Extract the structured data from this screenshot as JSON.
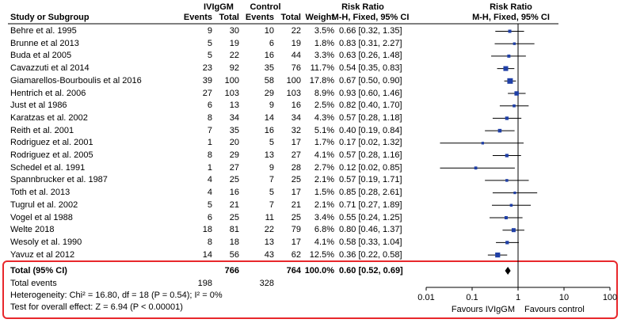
{
  "header": {
    "group1": "IVIgGM",
    "group2": "Control",
    "risk_ratio_a": "Risk Ratio",
    "risk_ratio_b": "Risk Ratio",
    "study_col": "Study or Subgroup",
    "events1": "Events",
    "total1": "Total",
    "events2": "Events",
    "total2": "Total",
    "weight": "Weight",
    "method_a": "M-H, Fixed, 95% CI",
    "method_b": "M-H, Fixed, 95% CI"
  },
  "chart_data": {
    "type": "forest",
    "scale": "log",
    "xlim": [
      0.01,
      100
    ],
    "ticks": [
      "0.01",
      "0.1",
      "1",
      "10",
      "100"
    ],
    "favours_left": "Favours IVIgGM",
    "favours_right": "Favours control",
    "studies": [
      {
        "name": "Behre et al. 1995",
        "e1": 9,
        "n1": 30,
        "e2": 10,
        "n2": 22,
        "weight": "3.5%",
        "rr": 0.66,
        "lo": 0.32,
        "hi": 1.35,
        "ci": "0.66 [0.32, 1.35]"
      },
      {
        "name": "Brunne et al 2013",
        "e1": 5,
        "n1": 19,
        "e2": 6,
        "n2": 19,
        "weight": "1.8%",
        "rr": 0.83,
        "lo": 0.31,
        "hi": 2.27,
        "ci": "0.83 [0.31, 2.27]"
      },
      {
        "name": "Buda et al 2005",
        "e1": 5,
        "n1": 22,
        "e2": 16,
        "n2": 44,
        "weight": "3.3%",
        "rr": 0.63,
        "lo": 0.26,
        "hi": 1.48,
        "ci": "0.63 [0.26, 1.48]"
      },
      {
        "name": "Cavazzuti et al 2014",
        "e1": 23,
        "n1": 92,
        "e2": 35,
        "n2": 76,
        "weight": "11.7%",
        "rr": 0.54,
        "lo": 0.35,
        "hi": 0.83,
        "ci": "0.54 [0.35, 0.83]"
      },
      {
        "name": "Giamarellos-Bourboulis et al 2016",
        "e1": 39,
        "n1": 100,
        "e2": 58,
        "n2": 100,
        "weight": "17.8%",
        "rr": 0.67,
        "lo": 0.5,
        "hi": 0.9,
        "ci": "0.67 [0.50, 0.90]"
      },
      {
        "name": "Hentrich et al. 2006",
        "e1": 27,
        "n1": 103,
        "e2": 29,
        "n2": 103,
        "weight": "8.9%",
        "rr": 0.93,
        "lo": 0.6,
        "hi": 1.46,
        "ci": "0.93 [0.60, 1.46]"
      },
      {
        "name": "Just et al 1986",
        "e1": 6,
        "n1": 13,
        "e2": 9,
        "n2": 16,
        "weight": "2.5%",
        "rr": 0.82,
        "lo": 0.4,
        "hi": 1.7,
        "ci": "0.82 [0.40, 1.70]"
      },
      {
        "name": "Karatzas et al. 2002",
        "e1": 8,
        "n1": 34,
        "e2": 14,
        "n2": 34,
        "weight": "4.3%",
        "rr": 0.57,
        "lo": 0.28,
        "hi": 1.18,
        "ci": "0.57 [0.28, 1.18]"
      },
      {
        "name": "Reith et al. 2001",
        "e1": 7,
        "n1": 35,
        "e2": 16,
        "n2": 32,
        "weight": "5.1%",
        "rr": 0.4,
        "lo": 0.19,
        "hi": 0.84,
        "ci": "0.40 [0.19, 0.84]"
      },
      {
        "name": "Rodriguez et al. 2001",
        "e1": 1,
        "n1": 20,
        "e2": 5,
        "n2": 17,
        "weight": "1.7%",
        "rr": 0.17,
        "lo": 0.02,
        "hi": 1.32,
        "ci": "0.17 [0.02, 1.32]"
      },
      {
        "name": "Rodriguez et al. 2005",
        "e1": 8,
        "n1": 29,
        "e2": 13,
        "n2": 27,
        "weight": "4.1%",
        "rr": 0.57,
        "lo": 0.28,
        "hi": 1.16,
        "ci": "0.57 [0.28, 1.16]"
      },
      {
        "name": "Schedel et al. 1991",
        "e1": 1,
        "n1": 27,
        "e2": 9,
        "n2": 28,
        "weight": "2.7%",
        "rr": 0.12,
        "lo": 0.02,
        "hi": 0.85,
        "ci": "0.12 [0.02, 0.85]"
      },
      {
        "name": "Spannbrucker et al. 1987",
        "e1": 4,
        "n1": 25,
        "e2": 7,
        "n2": 25,
        "weight": "2.1%",
        "rr": 0.57,
        "lo": 0.19,
        "hi": 1.71,
        "ci": "0.57 [0.19, 1.71]"
      },
      {
        "name": "Toth et al. 2013",
        "e1": 4,
        "n1": 16,
        "e2": 5,
        "n2": 17,
        "weight": "1.5%",
        "rr": 0.85,
        "lo": 0.28,
        "hi": 2.61,
        "ci": "0.85 [0.28, 2.61]"
      },
      {
        "name": "Tugrul et al. 2002",
        "e1": 5,
        "n1": 21,
        "e2": 7,
        "n2": 21,
        "weight": "2.1%",
        "rr": 0.71,
        "lo": 0.27,
        "hi": 1.89,
        "ci": "0.71 [0.27, 1.89]"
      },
      {
        "name": "Vogel et al 1988",
        "e1": 6,
        "n1": 25,
        "e2": 11,
        "n2": 25,
        "weight": "3.4%",
        "rr": 0.55,
        "lo": 0.24,
        "hi": 1.25,
        "ci": "0.55 [0.24, 1.25]"
      },
      {
        "name": "Welte 2018",
        "e1": 18,
        "n1": 81,
        "e2": 22,
        "n2": 79,
        "weight": "6.8%",
        "rr": 0.8,
        "lo": 0.46,
        "hi": 1.37,
        "ci": "0.80 [0.46, 1.37]"
      },
      {
        "name": "Wesoly et al. 1990",
        "e1": 8,
        "n1": 18,
        "e2": 13,
        "n2": 17,
        "weight": "4.1%",
        "rr": 0.58,
        "lo": 0.33,
        "hi": 1.04,
        "ci": "0.58 [0.33, 1.04]"
      },
      {
        "name": "Yavuz et al 2012",
        "e1": 14,
        "n1": 56,
        "e2": 43,
        "n2": 62,
        "weight": "12.5%",
        "rr": 0.36,
        "lo": 0.22,
        "hi": 0.58,
        "ci": "0.36 [0.22, 0.58]"
      }
    ],
    "total": {
      "label": "Total (95% CI)",
      "n1": "766",
      "n2": "764",
      "weight": "100.0%",
      "rr": 0.6,
      "lo": 0.52,
      "hi": 0.69,
      "ci": "0.60 [0.52, 0.69]"
    }
  },
  "footer": {
    "total_events_label": "Total events",
    "total_events_1": "198",
    "total_events_2": "328",
    "heterogeneity": "Heterogeneity: Chi² = 16.80, df = 18 (P = 0.54); I² = 0%",
    "overall_effect": "Test for overall effect: Z = 6.94 (P < 0.00001)"
  },
  "colors": {
    "marker": "#1f3fa6",
    "line": "#000000",
    "highlight": "#e8282c"
  }
}
